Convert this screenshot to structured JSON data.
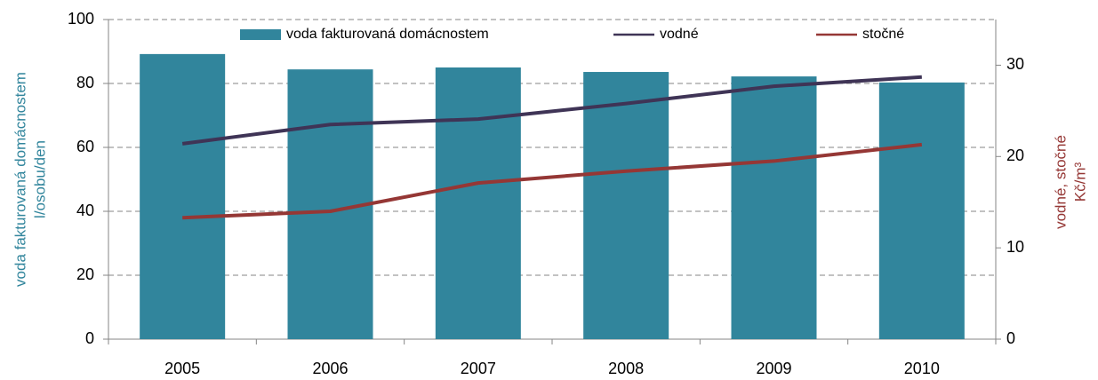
{
  "chart_data": {
    "type": "bar-line",
    "categories": [
      "2005",
      "2006",
      "2007",
      "2008",
      "2009",
      "2010"
    ],
    "series": [
      {
        "name": "voda fakturovaná domácnostem",
        "type": "bar",
        "color": "#31859c",
        "values": [
          89.2,
          84.4,
          85,
          83.6,
          82.2,
          80.3
        ]
      },
      {
        "name": "vodné",
        "type": "line",
        "axis": "y2",
        "color": "#3f3456",
        "values": [
          21.4,
          23.5,
          24.1,
          25.8,
          27.7,
          28.7
        ]
      },
      {
        "name": "stočné",
        "type": "line",
        "axis": "y2",
        "color": "#953735",
        "values": [
          13.3,
          14.0,
          17.1,
          18.4,
          19.5,
          21.3
        ]
      }
    ],
    "ylabel": [
      "voda fakturovaná domácnostem",
      "l/osobu/den"
    ],
    "y2label": [
      "vodné, stočné",
      "Kč/m³"
    ],
    "ylim": [
      0,
      100
    ],
    "yticks": [
      0,
      20,
      40,
      60,
      80,
      100
    ],
    "y2lim": [
      0,
      35
    ],
    "y2ticks": [
      0,
      10,
      20,
      30
    ],
    "grid": true,
    "legend": "top"
  }
}
